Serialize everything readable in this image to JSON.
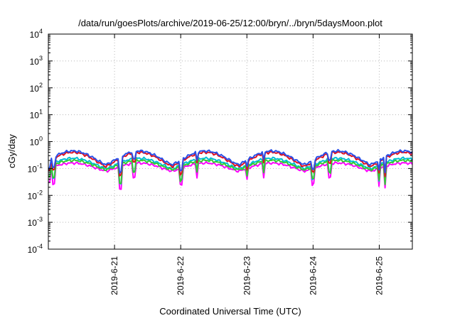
{
  "chart_data": {
    "type": "line",
    "title": "/data/run/goesPlots/archive/2019-06-25/12:00/bryn/../bryn/5daysMoon.plot",
    "xlabel": "Coordinated Universal Time (UTC)",
    "ylabel": "cGy/day",
    "yscale": "log",
    "ylim": [
      0.0001,
      10000
    ],
    "xlim": [
      "2019-06-20 00:00",
      "2019-06-25 12:00"
    ],
    "grid": true,
    "x_ticks": [
      "2019-6-21",
      "2019-6-22",
      "2019-6-23",
      "2019-6-24",
      "2019-6-25"
    ],
    "y_ticks": [
      {
        "base": "10",
        "exp": "-4"
      },
      {
        "base": "10",
        "exp": "-3"
      },
      {
        "base": "10",
        "exp": "-2"
      },
      {
        "base": "10",
        "exp": "-1"
      },
      {
        "base": "10",
        "exp": "0"
      },
      {
        "base": "10",
        "exp": "1"
      },
      {
        "base": "10",
        "exp": "2"
      },
      {
        "base": "10",
        "exp": "3"
      },
      {
        "base": "10",
        "exp": "4"
      }
    ],
    "series": [
      {
        "color": "#ff00ff",
        "peak": 0.16,
        "trough": 0.08
      },
      {
        "color": "#00bcd4",
        "peak": 0.24,
        "trough": 0.1
      },
      {
        "color": "#33cc33",
        "peak": 0.2,
        "trough": 0.09
      },
      {
        "color": "#e01020",
        "peak": 0.4,
        "trough": 0.12
      },
      {
        "color": "#2a50e8",
        "peak": 0.45,
        "trough": 0.14
      }
    ],
    "dips": [
      {
        "time": "2019-06-20 00:15",
        "value": 0.05
      },
      {
        "time": "2019-06-20 02:00",
        "value": 0.04
      },
      {
        "time": "2019-06-21 02:00",
        "value": 0.025
      },
      {
        "time": "2019-06-21 07:00",
        "value": 0.05
      },
      {
        "time": "2019-06-22 00:00",
        "value": 0.04
      },
      {
        "time": "2019-06-22 06:00",
        "value": 0.05
      },
      {
        "time": "2019-06-23 00:00",
        "value": 0.06
      },
      {
        "time": "2019-06-23 06:00",
        "value": 0.05
      },
      {
        "time": "2019-06-24 00:00",
        "value": 0.045
      },
      {
        "time": "2019-06-24 06:00",
        "value": 0.05
      },
      {
        "time": "2019-06-25 00:00",
        "value": 0.04
      },
      {
        "time": "2019-06-25 02:00",
        "value": 0.025
      }
    ]
  }
}
